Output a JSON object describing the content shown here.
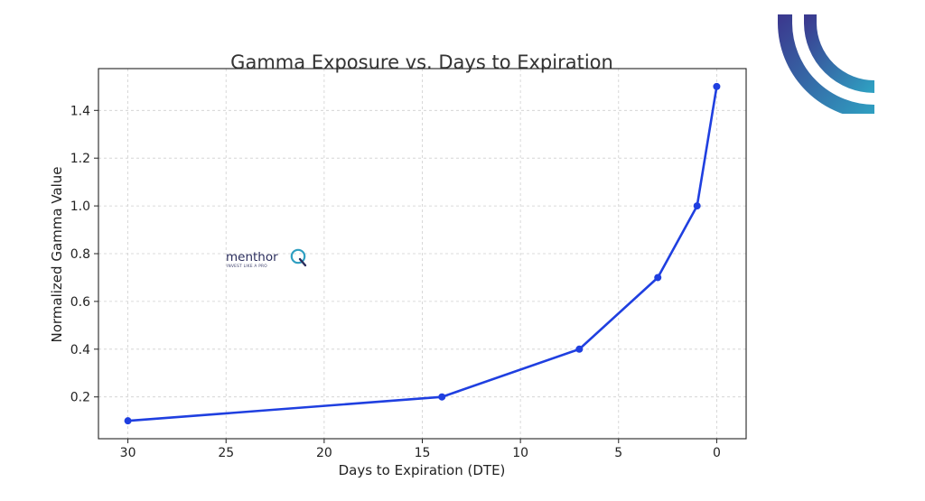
{
  "brand": {
    "name": "menthor",
    "tagline": "INVEST LIKE A PRO",
    "name_color": "#2a2d5c",
    "logo_gradient": [
      "#3b3a8f",
      "#2f9fc1"
    ]
  },
  "chart_data": {
    "type": "line",
    "title": "Gamma Exposure vs. Days to Expiration",
    "xlabel": "Days to Expiration (DTE)",
    "ylabel": "Normalized Gamma Value",
    "x_inverted": true,
    "xlim": [
      31.5,
      -1.5
    ],
    "ylim": [
      0.025,
      1.575
    ],
    "grid": true,
    "legend": "none",
    "x_ticks": [
      30,
      25,
      20,
      15,
      10,
      5,
      0
    ],
    "x_tick_labels": [
      "30",
      "25",
      "20",
      "15",
      "10",
      "5",
      "0"
    ],
    "y_ticks": [
      0.2,
      0.4,
      0.6,
      0.8,
      1.0,
      1.2,
      1.4
    ],
    "y_tick_labels": [
      "0.2",
      "0.4",
      "0.6",
      "0.8",
      "1.0",
      "1.2",
      "1.4"
    ],
    "series": [
      {
        "color": "#1f3fe0",
        "marker": "circle",
        "x": [
          30,
          14,
          7,
          3,
          1,
          0
        ],
        "y": [
          0.1,
          0.2,
          0.4,
          0.7,
          1.0,
          1.5
        ]
      }
    ]
  }
}
